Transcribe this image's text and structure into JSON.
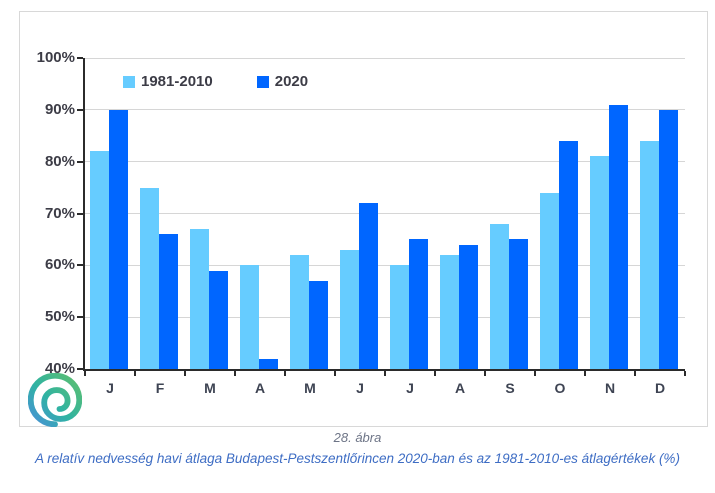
{
  "figure": {
    "number": "28. ábra",
    "caption": "A relatív nedvesség havi átlaga Budapest-Pestszentlőrincen 2020-ban és az 1981-2010-es átlagértékek (%)"
  },
  "chart_data": {
    "type": "bar",
    "categories": [
      "J",
      "F",
      "M",
      "A",
      "M",
      "J",
      "J",
      "A",
      "S",
      "O",
      "N",
      "D"
    ],
    "series": [
      {
        "name": "1981-2010",
        "color": "#66CCFF",
        "values": [
          82,
          75,
          67,
          60,
          62,
          63,
          60,
          62,
          68,
          74,
          81,
          84
        ]
      },
      {
        "name": "2020",
        "color": "#0066FF",
        "values": [
          90,
          66,
          59,
          42,
          57,
          72,
          65,
          64,
          65,
          84,
          91,
          90
        ]
      }
    ],
    "title": "",
    "xlabel": "",
    "ylabel": "",
    "ylim": [
      40,
      100
    ],
    "ytick_step": 10,
    "ytick_labels": [
      "40%",
      "50%",
      "60%",
      "70%",
      "80%",
      "90%",
      "100%"
    ],
    "grid": true,
    "legend_position": "top-left"
  },
  "icons": {
    "logo": "spiral-wave-logo"
  },
  "colors": {
    "series_1981_2010": "#66CCFF",
    "series_2020": "#0066FF",
    "axis": "#2b2b2b",
    "gridline": "#d6d6d6",
    "caption_number": "#6d7486",
    "caption_title": "#3e6dc4"
  }
}
